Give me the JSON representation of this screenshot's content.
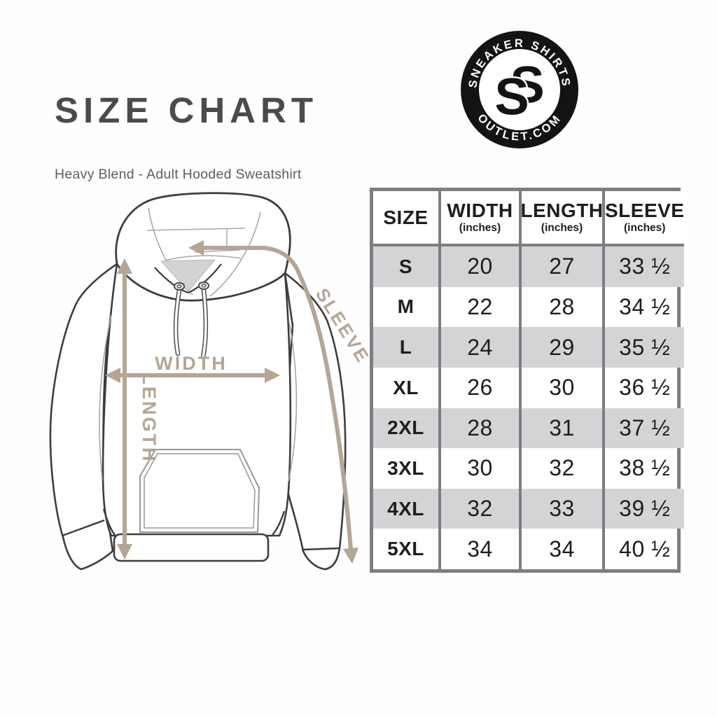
{
  "header": {
    "title": "SIZE CHART",
    "subtitle": "Heavy Blend - Adult Hooded Sweatshirt"
  },
  "logo": {
    "arc_top": "SNEAKER SHIRTS",
    "arc_bottom": "OUTLET.COM",
    "monogram_back": "S",
    "monogram_front": "S"
  },
  "diagram": {
    "width_label": "WIDTH",
    "length_label": "LENGTH",
    "sleeve_label": "SLEEVE",
    "arrow_color": "#b5a593"
  },
  "chart_data": {
    "type": "table",
    "title": "SIZE CHART",
    "subtitle": "Heavy Blend - Adult Hooded Sweatshirt",
    "columns": [
      {
        "label": "SIZE",
        "sub": ""
      },
      {
        "label": "WIDTH",
        "sub": "(inches)"
      },
      {
        "label": "LENGTH",
        "sub": "(inches)"
      },
      {
        "label": "SLEEVE",
        "sub": "(inches)"
      }
    ],
    "rows": [
      {
        "size": "S",
        "width": "20",
        "length": "27",
        "sleeve": "33 ½"
      },
      {
        "size": "M",
        "width": "22",
        "length": "28",
        "sleeve": "34 ½"
      },
      {
        "size": "L",
        "width": "24",
        "length": "29",
        "sleeve": "35 ½"
      },
      {
        "size": "XL",
        "width": "26",
        "length": "30",
        "sleeve": "36 ½"
      },
      {
        "size": "2XL",
        "width": "28",
        "length": "31",
        "sleeve": "37 ½"
      },
      {
        "size": "3XL",
        "width": "30",
        "length": "32",
        "sleeve": "38 ½"
      },
      {
        "size": "4XL",
        "width": "32",
        "length": "33",
        "sleeve": "39 ½"
      },
      {
        "size": "5XL",
        "width": "34",
        "length": "34",
        "sleeve": "40 ½"
      }
    ],
    "colors": {
      "stripe": "#d3d4d6",
      "grid": "#7d7e81",
      "text": "#1e1e20",
      "title": "#4b4b4d",
      "arrow": "#b5a593"
    }
  }
}
